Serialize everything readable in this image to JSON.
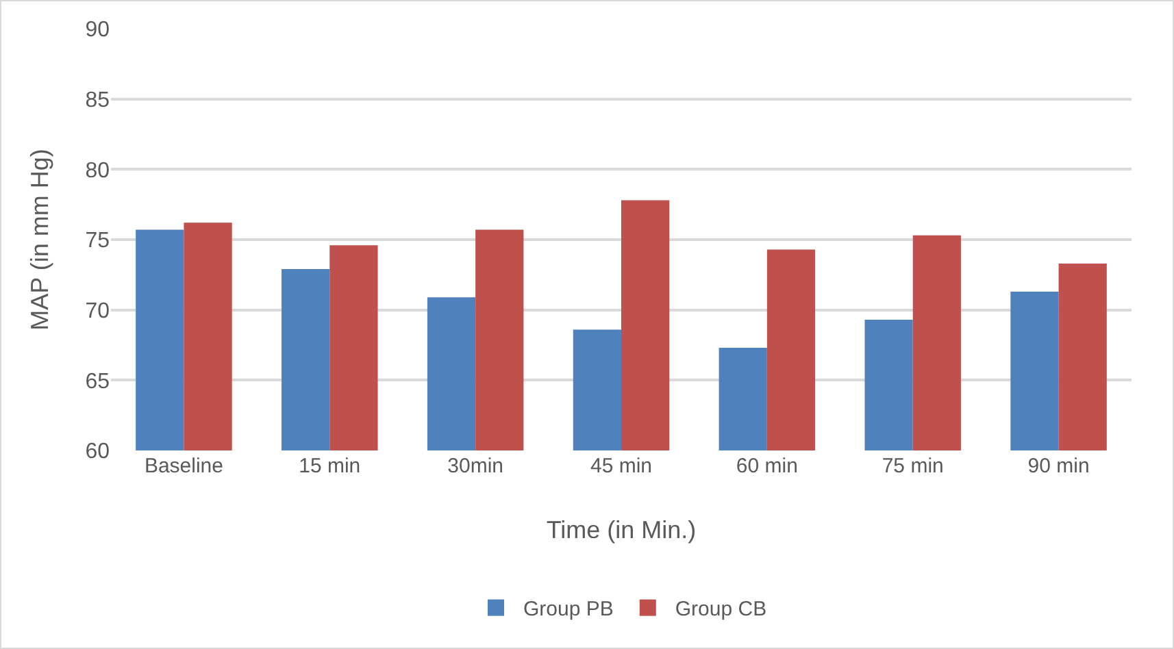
{
  "chart_data": {
    "type": "bar",
    "xlabel": "Time (in Min.)",
    "ylabel": "MAP (in mm Hg)",
    "categories": [
      "Baseline",
      "15 min",
      "30min",
      "45 min",
      "60 min",
      "75 min",
      "90 min"
    ],
    "series": [
      {
        "name": "Group PB",
        "color": "#4f81bd",
        "values": [
          75.7,
          72.9,
          70.9,
          68.6,
          67.3,
          69.3,
          71.3
        ]
      },
      {
        "name": "Group CB",
        "color": "#c0504d",
        "values": [
          76.2,
          74.6,
          75.7,
          77.8,
          74.3,
          75.3,
          73.3
        ]
      }
    ],
    "ylim": [
      60,
      90
    ],
    "yticks": [
      60,
      65,
      70,
      75,
      80,
      85,
      90
    ],
    "grid": "y",
    "legend": "bottom"
  }
}
